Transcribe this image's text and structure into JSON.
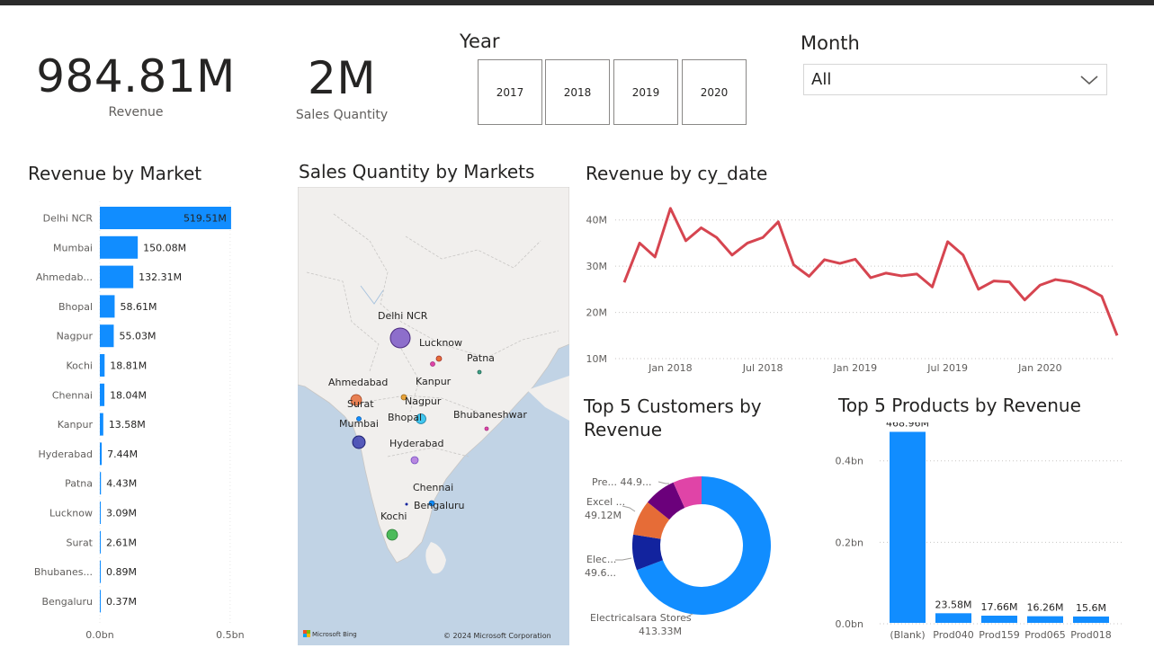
{
  "kpis": {
    "revenue_value": "984.81M",
    "revenue_label": "Revenue",
    "quantity_value": "2M",
    "quantity_label": "Sales Quantity"
  },
  "year_slicer": {
    "title": "Year",
    "options": [
      "2017",
      "2018",
      "2019",
      "2020"
    ]
  },
  "month_slicer": {
    "title": "Month",
    "value": "All"
  },
  "titles": {
    "revenue_by_market": "Revenue by Market",
    "sales_qty_map": "Sales Quantity by Markets",
    "revenue_by_date": "Revenue by cy_date",
    "top_customers": "Top 5 Customers by Revenue",
    "top_products": "Top 5 Products by Revenue"
  },
  "map": {
    "labels": [
      "Delhi NCR",
      "Lucknow",
      "Patna",
      "Ahmedabad",
      "Kanpur",
      "Surat",
      "Nagpur",
      "Mumbai",
      "Bhopal",
      "Bhubaneshwar",
      "Hyderabad",
      "Chennai",
      "Bengaluru",
      "Kochi"
    ],
    "bing_logo": "Microsoft Bing",
    "copyright": "© 2024 Microsoft Corporation"
  },
  "chart_data": [
    {
      "id": "revenue_by_market",
      "type": "bar",
      "orientation": "horizontal",
      "categories": [
        "Delhi NCR",
        "Mumbai",
        "Ahmedab...",
        "Bhopal",
        "Nagpur",
        "Kochi",
        "Chennai",
        "Kanpur",
        "Hyderabad",
        "Patna",
        "Lucknow",
        "Surat",
        "Bhubanes...",
        "Bengaluru"
      ],
      "values": [
        519.51,
        150.08,
        132.31,
        58.61,
        55.03,
        18.81,
        18.04,
        13.58,
        7.44,
        4.43,
        3.09,
        2.61,
        0.89,
        0.37
      ],
      "data_labels": [
        "519.51M",
        "150.08M",
        "132.31M",
        "58.61M",
        "55.03M",
        "18.81M",
        "18.04M",
        "13.58M",
        "7.44M",
        "4.43M",
        "3.09M",
        "2.61M",
        "0.89M",
        "0.37M"
      ],
      "xlim": [
        0,
        560
      ],
      "x_ticks": [
        0,
        500
      ],
      "x_tick_labels": [
        "0.0bn",
        "0.5bn"
      ],
      "color": "#118DFF"
    },
    {
      "id": "revenue_by_date",
      "type": "line",
      "x": [
        "2017-10",
        "2017-11",
        "2017-12",
        "2018-01",
        "2018-02",
        "2018-03",
        "2018-04",
        "2018-05",
        "2018-06",
        "2018-07",
        "2018-08",
        "2018-09",
        "2018-10",
        "2018-11",
        "2018-12",
        "2019-01",
        "2019-02",
        "2019-03",
        "2019-04",
        "2019-05",
        "2019-06",
        "2019-07",
        "2019-08",
        "2019-09",
        "2019-10",
        "2019-11",
        "2019-12",
        "2020-01",
        "2020-02",
        "2020-03",
        "2020-04",
        "2020-05",
        "2020-06"
      ],
      "values": [
        26.5,
        35.0,
        32.0,
        42.5,
        35.5,
        38.3,
        36.2,
        32.4,
        35.0,
        36.2,
        39.6,
        30.3,
        27.8,
        31.4,
        30.6,
        31.5,
        27.5,
        28.5,
        27.9,
        28.3,
        25.5,
        35.3,
        32.4,
        25.0,
        26.8,
        26.6,
        22.7,
        25.9,
        27.1,
        26.6,
        25.3,
        23.5,
        15.0
      ],
      "ylim": [
        10,
        45
      ],
      "y_ticks": [
        10,
        20,
        30,
        40
      ],
      "y_tick_labels": [
        "10M",
        "20M",
        "30M",
        "40M"
      ],
      "x_tick_labels": [
        "Jan 2018",
        "Jul 2018",
        "Jan 2019",
        "Jul 2019",
        "Jan 2020"
      ],
      "x_tick_positions": [
        "2018-01",
        "2018-07",
        "2019-01",
        "2019-07",
        "2020-01"
      ],
      "color": "#D64550"
    },
    {
      "id": "top_customers",
      "type": "pie",
      "donut": true,
      "slices": [
        {
          "label": "Electricalsara Stores",
          "value": 413.33,
          "display": "413.33M",
          "color": "#118DFF"
        },
        {
          "label": "Elec...",
          "value": 49.6,
          "display": "49.6...",
          "color": "#12239E"
        },
        {
          "label": "Excel ...",
          "value": 49.12,
          "display": "49.12M",
          "color": "#E66C37"
        },
        {
          "label": "Pre...",
          "value": 44.9,
          "display": "44.9...",
          "color": "#6B007B"
        },
        {
          "label": "",
          "value": 40.0,
          "display": "",
          "color": "#E044A7"
        }
      ]
    },
    {
      "id": "top_products",
      "type": "bar",
      "categories": [
        "(Blank)",
        "Prod040",
        "Prod159",
        "Prod065",
        "Prod018"
      ],
      "values": [
        468.96,
        23.58,
        17.66,
        16.26,
        15.6
      ],
      "data_labels": [
        "468.96M",
        "23.58M",
        "17.66M",
        "16.26M",
        "15.6M"
      ],
      "ylim": [
        0,
        470
      ],
      "y_ticks": [
        0,
        200,
        400
      ],
      "y_tick_labels": [
        "0.0bn",
        "0.2bn",
        "0.4bn"
      ],
      "color": "#118DFF"
    }
  ]
}
